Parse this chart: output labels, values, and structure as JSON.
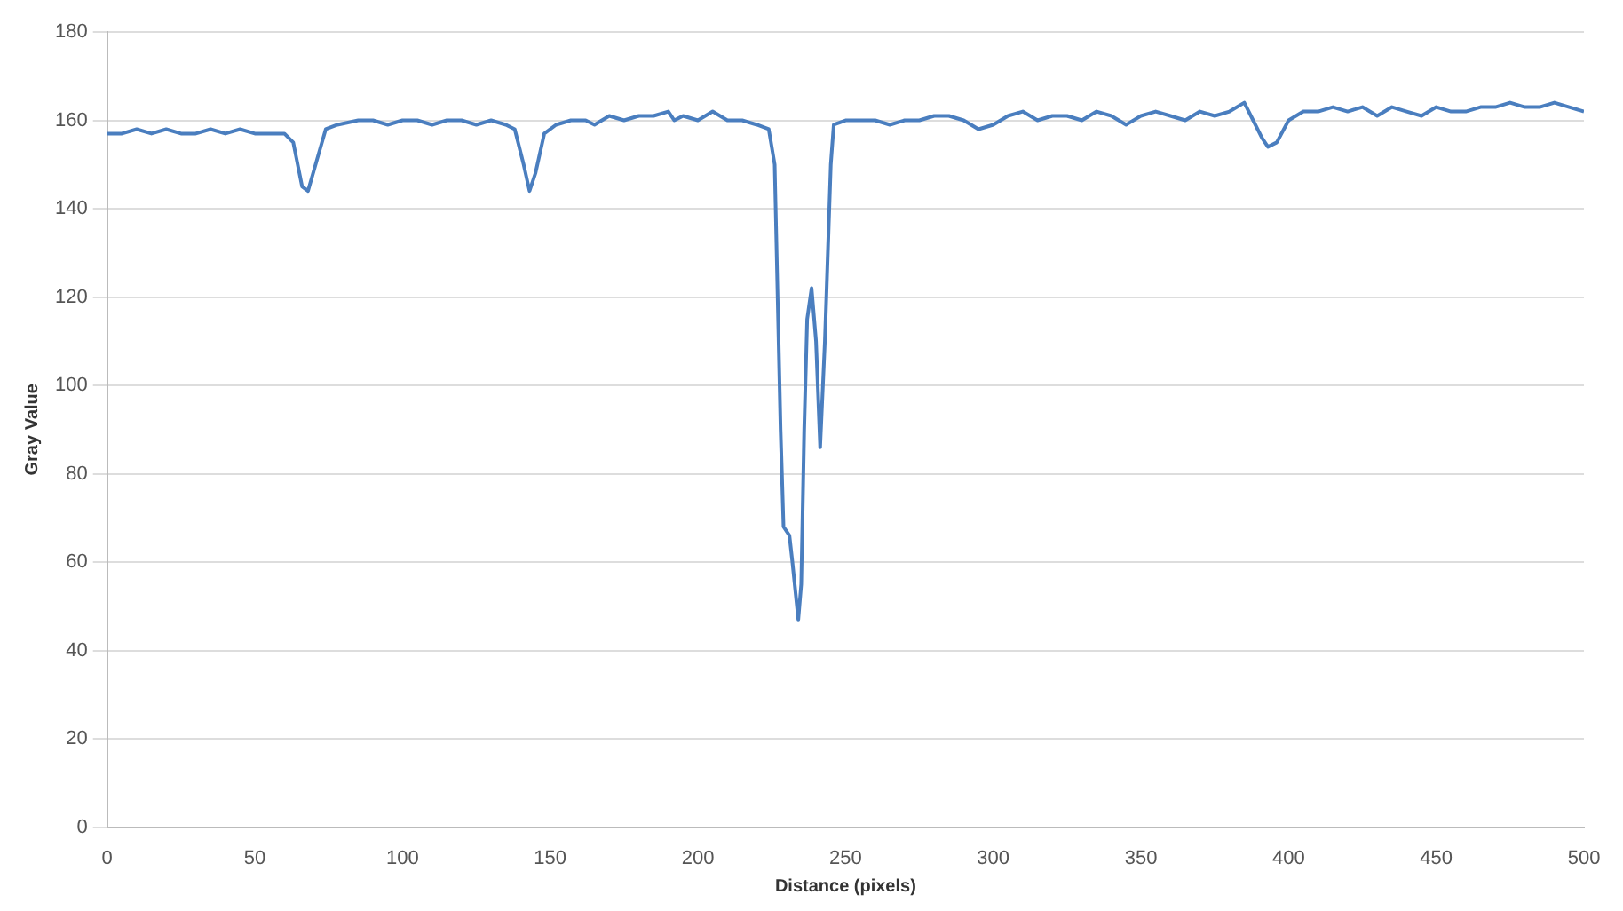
{
  "chart_data": {
    "type": "line",
    "xlabel": "Distance (pixels)",
    "ylabel": "Gray Value",
    "x": [
      0,
      5,
      10,
      15,
      20,
      25,
      30,
      35,
      40,
      45,
      50,
      55,
      60,
      63,
      66,
      68,
      71,
      74,
      78,
      85,
      90,
      95,
      100,
      105,
      110,
      115,
      120,
      125,
      130,
      135,
      138,
      141,
      143,
      145,
      148,
      152,
      157,
      162,
      165,
      170,
      175,
      180,
      185,
      190,
      192,
      195,
      200,
      205,
      210,
      215,
      220,
      224,
      226,
      227,
      228,
      229,
      231,
      232,
      234,
      235,
      236,
      237,
      238.5,
      240,
      241.4,
      243,
      245,
      246,
      250,
      255,
      260,
      265,
      270,
      275,
      280,
      285,
      290,
      295,
      300,
      305,
      310,
      315,
      320,
      325,
      330,
      335,
      340,
      345,
      350,
      355,
      360,
      365,
      370,
      375,
      380,
      385,
      388,
      391,
      393,
      396,
      400,
      405,
      410,
      415,
      420,
      425,
      430,
      435,
      440,
      445,
      450,
      455,
      460,
      465,
      470,
      475,
      480,
      485,
      490,
      495,
      500
    ],
    "series": [
      {
        "color": "#4a7ebf",
        "values": [
          157,
          157,
          158,
          157,
          158,
          157,
          157,
          158,
          157,
          158,
          157,
          157,
          157,
          155,
          145,
          144,
          151,
          158,
          159,
          160,
          160,
          159,
          160,
          160,
          159,
          160,
          160,
          159,
          160,
          159,
          158,
          150,
          144,
          148,
          157,
          159,
          160,
          160,
          159,
          161,
          160,
          161,
          161,
          162,
          160,
          161,
          160,
          162,
          160,
          160,
          159,
          158,
          150,
          120,
          90,
          68,
          66,
          60,
          47,
          55,
          90,
          115,
          122,
          110,
          86,
          110,
          150,
          159,
          160,
          160,
          160,
          159,
          160,
          160,
          161,
          161,
          160,
          158,
          159,
          161,
          162,
          160,
          161,
          161,
          160,
          162,
          161,
          159,
          161,
          162,
          161,
          160,
          162,
          161,
          162,
          164,
          160,
          156,
          154,
          155,
          160,
          162,
          162,
          163,
          162,
          163,
          161,
          163,
          162,
          161,
          163,
          162,
          162,
          163,
          163,
          164,
          163,
          163,
          164,
          163,
          162
        ]
      }
    ],
    "xlim": [
      0,
      500
    ],
    "xticks": [
      0,
      50,
      100,
      150,
      200,
      250,
      300,
      350,
      400,
      450,
      500
    ],
    "ylim": [
      0,
      180
    ],
    "yticks": [
      0,
      20,
      40,
      60,
      80,
      100,
      120,
      140,
      160,
      180
    ],
    "grid": "y",
    "legend": false,
    "marker": "none",
    "line_style": "solid"
  }
}
